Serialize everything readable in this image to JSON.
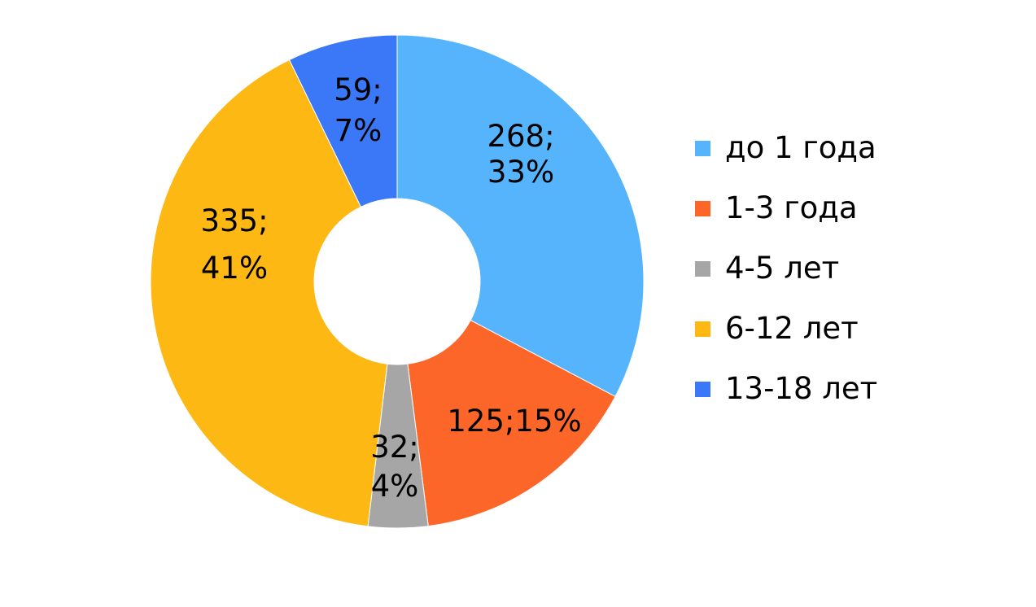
{
  "chart_data": {
    "type": "pie",
    "donut": true,
    "categories": [
      "до 1 года",
      "1-3 года",
      "4-5 лет",
      "6-12 лет",
      "13-18 лет"
    ],
    "values": [
      268,
      125,
      32,
      335,
      59
    ],
    "percents": [
      33,
      15,
      4,
      41,
      7
    ],
    "data_labels": [
      [
        "268;",
        "33%"
      ],
      [
        "125;15%"
      ],
      [
        "32;",
        "4%"
      ],
      [
        "335;",
        "41%"
      ],
      [
        "59;",
        "7%"
      ]
    ],
    "colors": [
      "#56b4fc",
      "#fd6629",
      "#a6a6a6",
      "#fdb813",
      "#3b78f8"
    ],
    "legend_position": "right",
    "start_angle": "12 o'clock",
    "direction": "clockwise"
  }
}
